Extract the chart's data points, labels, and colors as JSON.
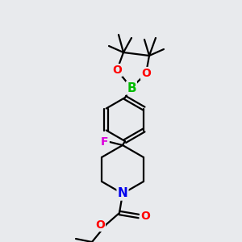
{
  "bg_color": "#e8eaed",
  "bond_color": "#000000",
  "bond_width": 1.6,
  "atom_colors": {
    "B": "#00bb00",
    "O": "#ff0000",
    "N": "#0000ee",
    "F": "#dd00dd",
    "C": "#000000"
  }
}
